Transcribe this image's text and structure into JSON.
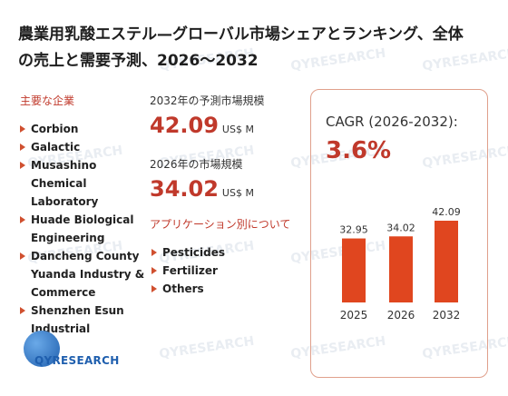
{
  "title": "農業用乳酸エステル—グローバル市場シェアとランキング、全体の売上と需要予測、2026～2032",
  "companies_label": "主要な企業",
  "companies": [
    "Corbion",
    "Galactic",
    "Musashino Chemical Laboratory",
    "Huade Biological Engineering",
    "Dancheng County Yuanda Industry & Commerce",
    "Shenzhen Esun Industrial"
  ],
  "stats": {
    "forecast_label": "2032年の予測市場規模",
    "forecast_value": "42.09",
    "forecast_unit": "US$ M",
    "current_label": "2026年の市場規模",
    "current_value": "34.02",
    "current_unit": "US$ M"
  },
  "applications_label": "アプリケーション別について",
  "applications": [
    "Pesticides",
    "Fertilizer",
    "Others"
  ],
  "cagr": {
    "label": "CAGR (2026-2032):",
    "value": "3.6%"
  },
  "chart_data": {
    "type": "bar",
    "categories": [
      "2025",
      "2026",
      "2032"
    ],
    "values": [
      32.95,
      34.02,
      42.09
    ],
    "data_labels": [
      "32.95",
      "34.02",
      "42.09"
    ],
    "color": "#e0461f"
  },
  "logo": {
    "text": "QYRESEARCH"
  },
  "watermark": "QYRESEARCH"
}
